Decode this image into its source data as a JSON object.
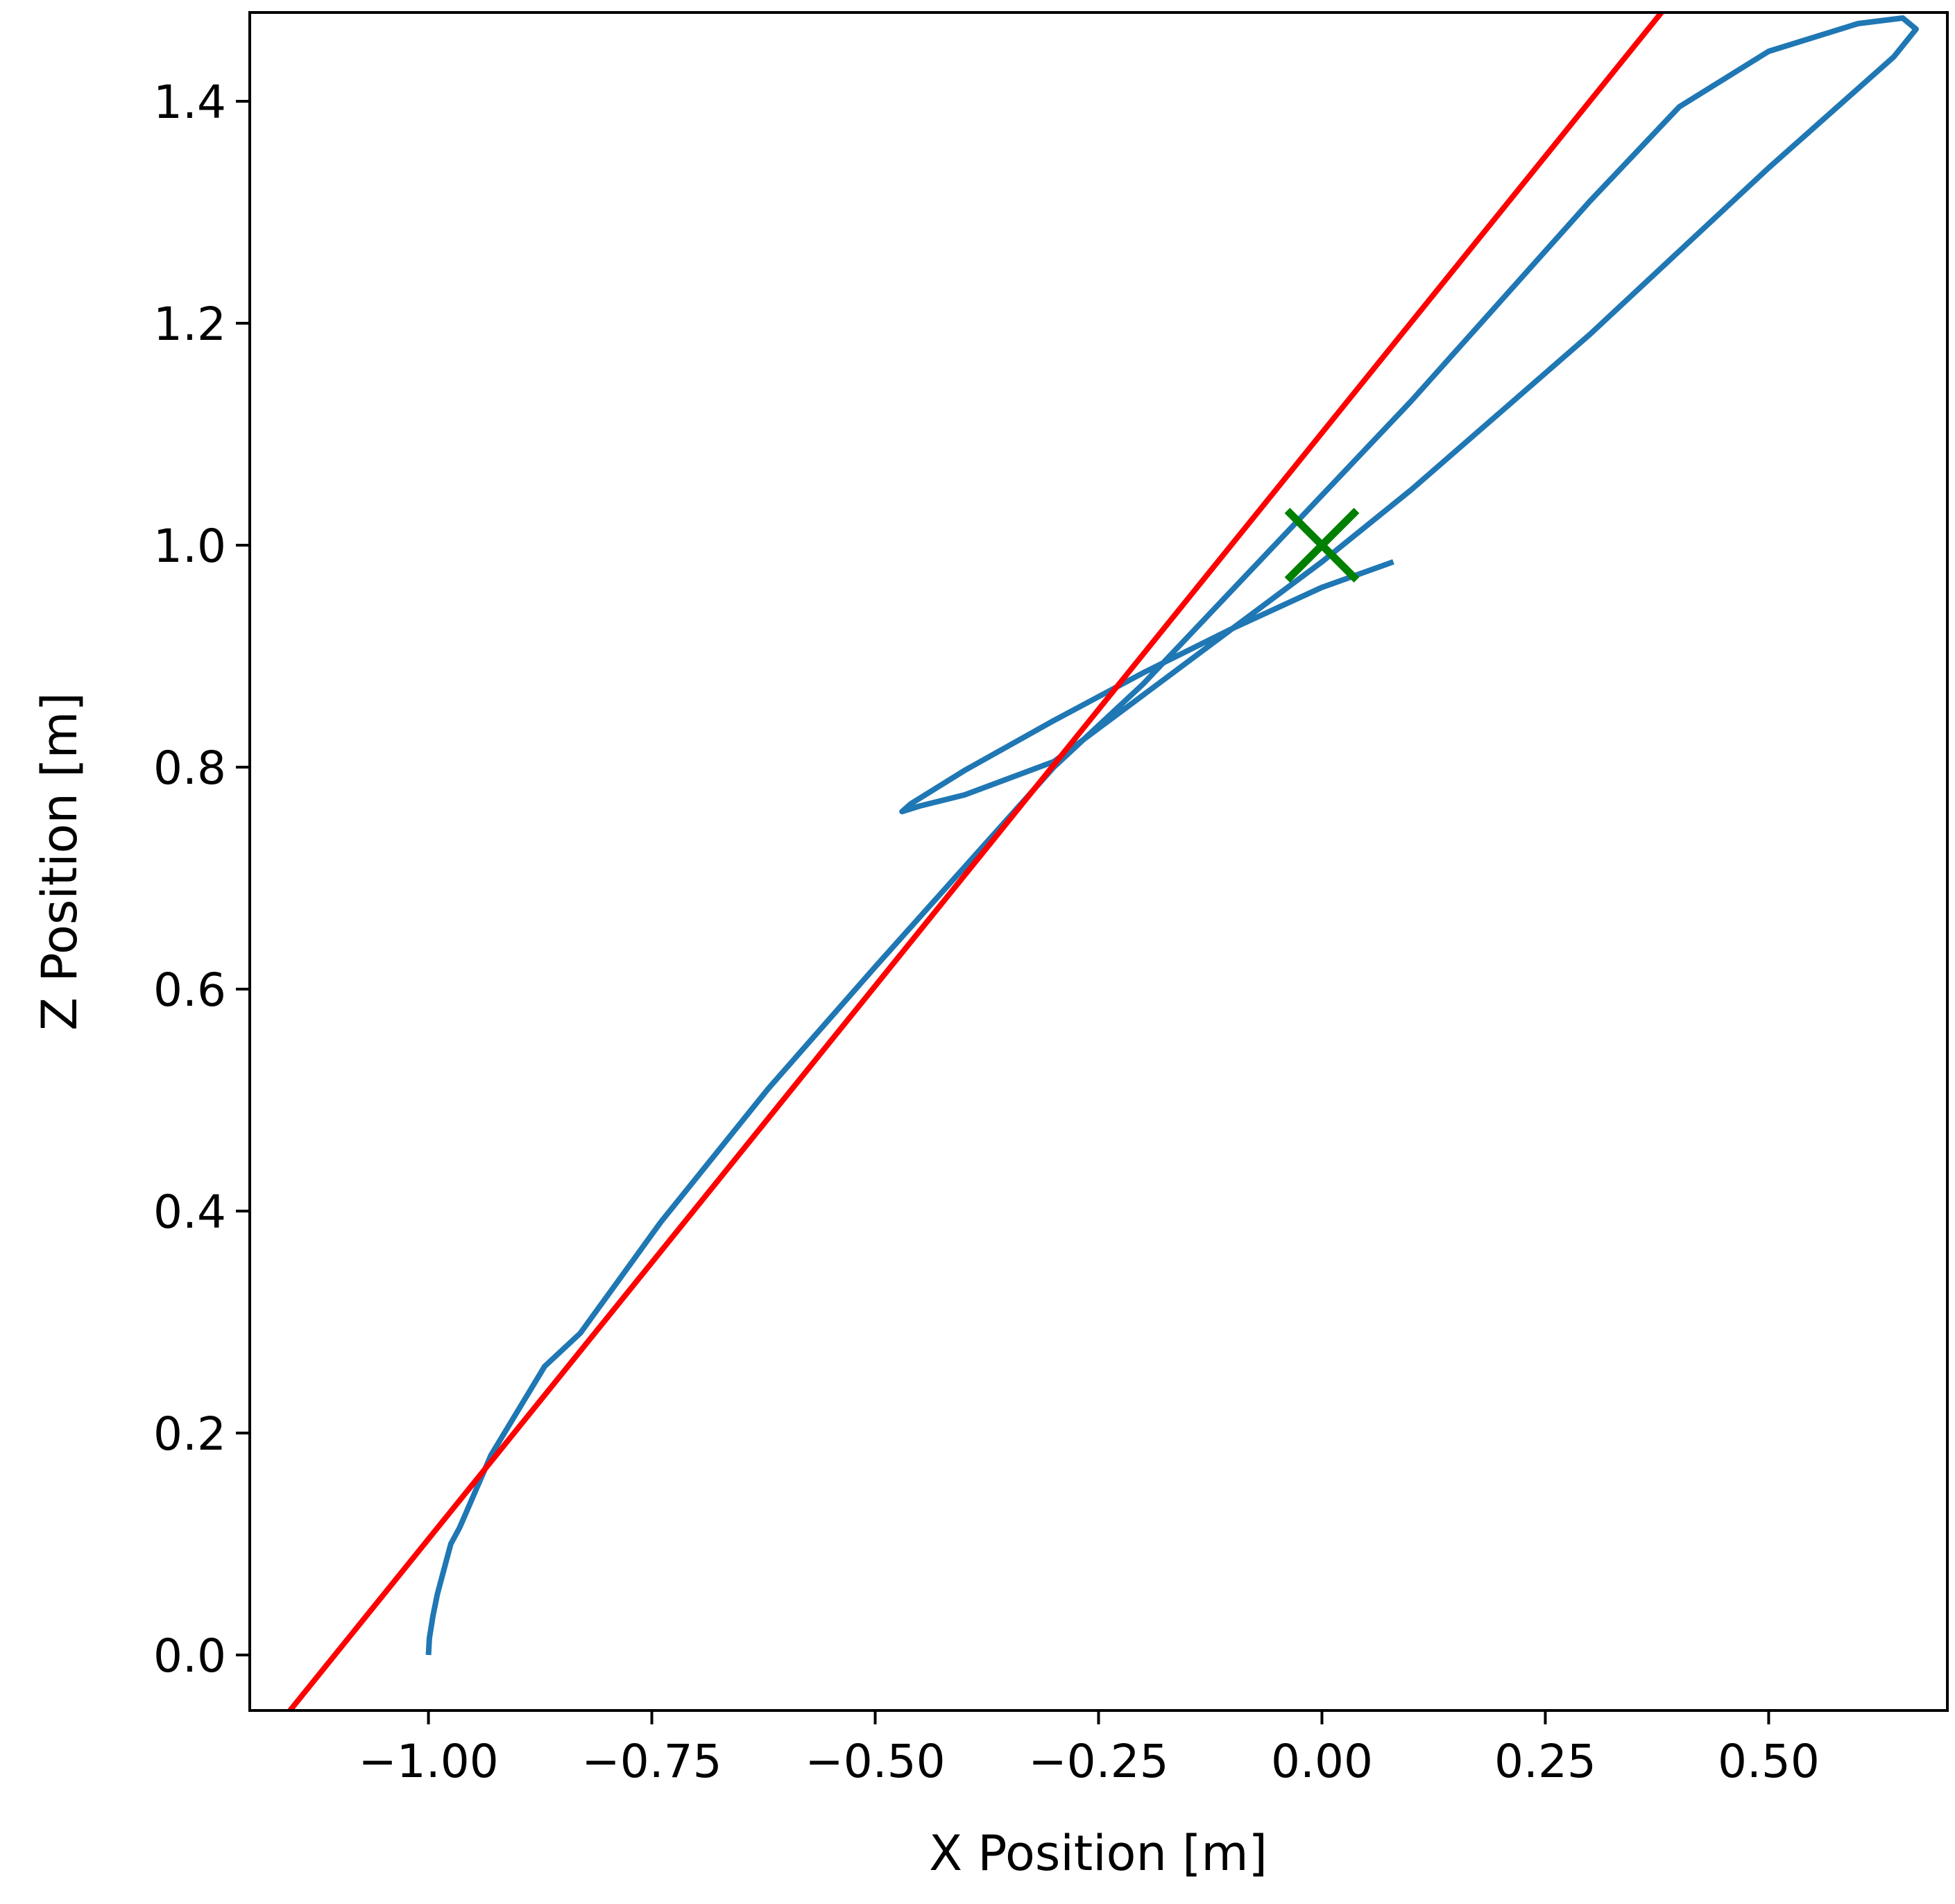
{
  "chart_data": {
    "type": "line",
    "title": "",
    "xlabel": "X Position [m]",
    "ylabel": "Z Position [m]",
    "xlim": [
      -1.2,
      0.7
    ],
    "ylim": [
      -0.05,
      1.48
    ],
    "grid": false,
    "x_ticks": [
      {
        "value": -1.0,
        "label": "−1.00"
      },
      {
        "value": -0.75,
        "label": "−0.75"
      },
      {
        "value": -0.5,
        "label": "−0.50"
      },
      {
        "value": -0.25,
        "label": "−0.25"
      },
      {
        "value": 0.0,
        "label": "0.00"
      },
      {
        "value": 0.25,
        "label": "0.25"
      },
      {
        "value": 0.5,
        "label": "0.50"
      }
    ],
    "y_ticks": [
      {
        "value": 0.0,
        "label": "0.0"
      },
      {
        "value": 0.2,
        "label": "0.2"
      },
      {
        "value": 0.4,
        "label": "0.4"
      },
      {
        "value": 0.6,
        "label": "0.6"
      },
      {
        "value": 0.8,
        "label": "0.8"
      },
      {
        "value": 1.0,
        "label": "1.0"
      },
      {
        "value": 1.2,
        "label": "1.2"
      },
      {
        "value": 1.4,
        "label": "1.4"
      }
    ],
    "series": [
      {
        "color": "#1f77b4",
        "points": [
          [
            -1.0,
            0.0
          ],
          [
            -0.999,
            0.015
          ],
          [
            -0.995,
            0.035
          ],
          [
            -0.99,
            0.055
          ],
          [
            -0.975,
            0.1
          ],
          [
            -0.965,
            0.115
          ],
          [
            -0.93,
            0.18
          ],
          [
            -0.87,
            0.26
          ],
          [
            -0.83,
            0.29
          ],
          [
            -0.74,
            0.39
          ],
          [
            -0.62,
            0.51
          ],
          [
            -0.5,
            0.62
          ],
          [
            -0.4,
            0.71
          ],
          [
            -0.3,
            0.8
          ],
          [
            -0.2,
            0.875
          ],
          [
            -0.1,
            0.96
          ],
          [
            0.0,
            1.045
          ],
          [
            0.1,
            1.13
          ],
          [
            0.2,
            1.22
          ],
          [
            0.3,
            1.31
          ],
          [
            0.4,
            1.395
          ],
          [
            0.5,
            1.445
          ],
          [
            0.6,
            1.47
          ],
          [
            0.65,
            1.475
          ],
          [
            0.665,
            1.465
          ],
          [
            0.64,
            1.44
          ],
          [
            0.5,
            1.34
          ],
          [
            0.4,
            1.265
          ],
          [
            0.3,
            1.19
          ],
          [
            0.2,
            1.12
          ],
          [
            0.1,
            1.05
          ],
          [
            0.0,
            0.985
          ],
          [
            -0.05,
            0.955
          ],
          [
            -0.1,
            0.925
          ],
          [
            -0.2,
            0.865
          ],
          [
            -0.3,
            0.805
          ],
          [
            -0.4,
            0.775
          ],
          [
            -0.45,
            0.765
          ],
          [
            -0.47,
            0.76
          ],
          [
            -0.46,
            0.767
          ],
          [
            -0.4,
            0.797
          ],
          [
            -0.3,
            0.842
          ],
          [
            -0.2,
            0.885
          ],
          [
            -0.1,
            0.925
          ],
          [
            0.0,
            0.962
          ],
          [
            0.08,
            0.985
          ]
        ]
      },
      {
        "color": "#ff0000",
        "points": [
          [
            -1.155,
            -0.05
          ],
          [
            0.38,
            1.48
          ]
        ]
      }
    ],
    "markers": [
      {
        "x": 0.0,
        "y": 1.0,
        "symbol": "x",
        "color": "#008000"
      }
    ]
  }
}
